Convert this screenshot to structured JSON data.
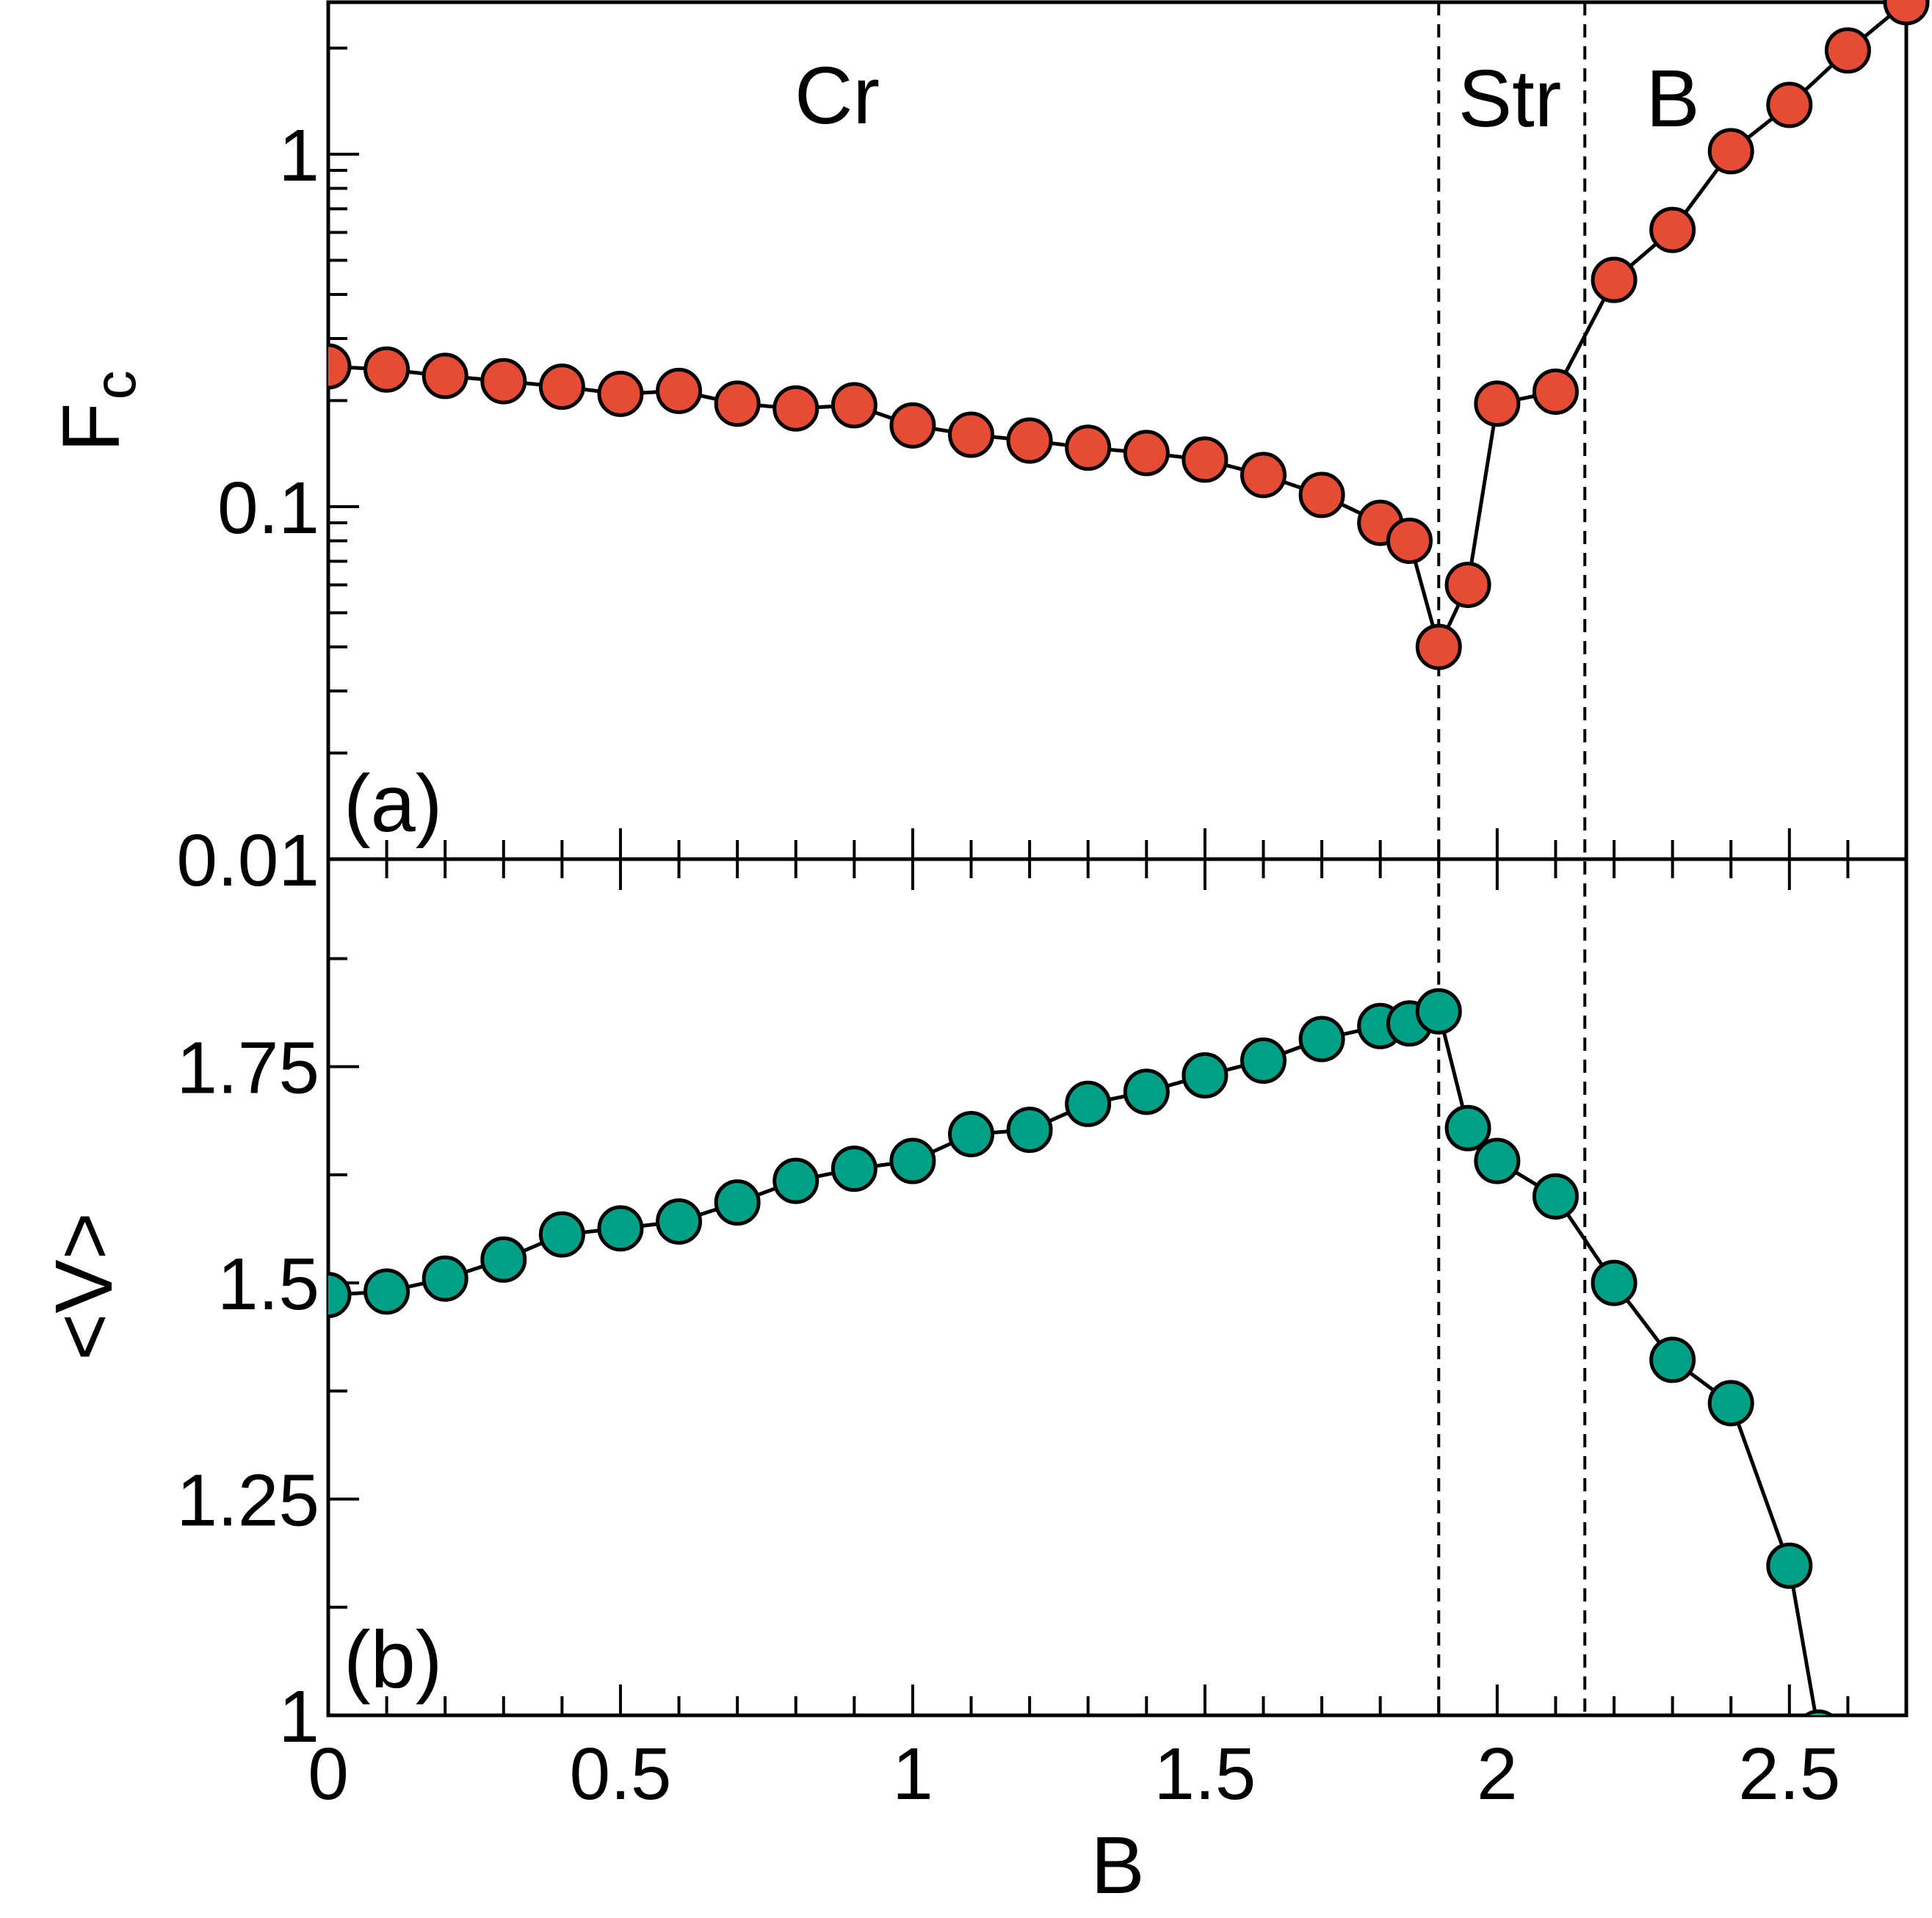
{
  "chart_data": [
    {
      "panel": "(a)",
      "type": "line",
      "ylabel": "F",
      "ylabel_sub": "c",
      "yscale": "log",
      "ylim": [
        0.01,
        2.7
      ],
      "xlim": [
        0,
        2.7
      ],
      "yticks": [
        0.01,
        0.1,
        1
      ],
      "ytick_labels": [
        "0.01",
        "0.1",
        "1"
      ],
      "color": "#e64b35",
      "series": [
        {
          "name": "Fc",
          "x": [
            0,
            0.1,
            0.2,
            0.3,
            0.4,
            0.5,
            0.6,
            0.7,
            0.8,
            0.9,
            1.0,
            1.1,
            1.2,
            1.3,
            1.4,
            1.5,
            1.6,
            1.7,
            1.8,
            1.85,
            1.9,
            1.95,
            2.0,
            2.1,
            2.2,
            2.3,
            2.4,
            2.5,
            2.6,
            2.7
          ],
          "values": [
            0.25,
            0.245,
            0.235,
            0.227,
            0.219,
            0.209,
            0.213,
            0.196,
            0.19,
            0.194,
            0.17,
            0.16,
            0.154,
            0.147,
            0.142,
            0.136,
            0.123,
            0.108,
            0.09,
            0.08,
            0.04,
            0.06,
            0.196,
            0.212,
            0.44,
            0.61,
            1.02,
            1.38,
            1.97,
            2.7
          ]
        }
      ]
    },
    {
      "panel": "(b)",
      "type": "line",
      "ylabel": "<V>",
      "xlabel": "B",
      "ylim": [
        1.0,
        1.99
      ],
      "xlim": [
        0,
        2.7
      ],
      "yticks": [
        1.0,
        1.25,
        1.5,
        1.75
      ],
      "ytick_labels": [
        "1",
        "1.25",
        "1.5",
        "1.75"
      ],
      "xticks": [
        0,
        0.5,
        1,
        1.5,
        2,
        2.5
      ],
      "xtick_labels": [
        "0",
        "0.5",
        "1",
        "1.5",
        "2",
        "2.5"
      ],
      "color": "#00a087",
      "series": [
        {
          "name": "<V>",
          "x": [
            0,
            0.1,
            0.2,
            0.3,
            0.4,
            0.5,
            0.6,
            0.7,
            0.8,
            0.9,
            1.0,
            1.1,
            1.2,
            1.3,
            1.4,
            1.5,
            1.6,
            1.7,
            1.8,
            1.85,
            1.9,
            1.95,
            2.0,
            2.1,
            2.2,
            2.3,
            2.4,
            2.5,
            2.55
          ],
          "values": [
            1.486,
            1.49,
            1.505,
            1.527,
            1.556,
            1.563,
            1.571,
            1.593,
            1.618,
            1.632,
            1.641,
            1.672,
            1.677,
            1.707,
            1.721,
            1.74,
            1.757,
            1.782,
            1.797,
            1.8,
            1.814,
            1.679,
            1.641,
            1.6,
            1.5,
            1.411,
            1.361,
            1.173,
            0.98
          ]
        }
      ]
    }
  ],
  "phase_boundaries": [
    1.9,
    2.15
  ],
  "region_labels": [
    "Cr",
    "Str",
    "B"
  ],
  "panel_labels": [
    "(a)",
    "(b)"
  ]
}
